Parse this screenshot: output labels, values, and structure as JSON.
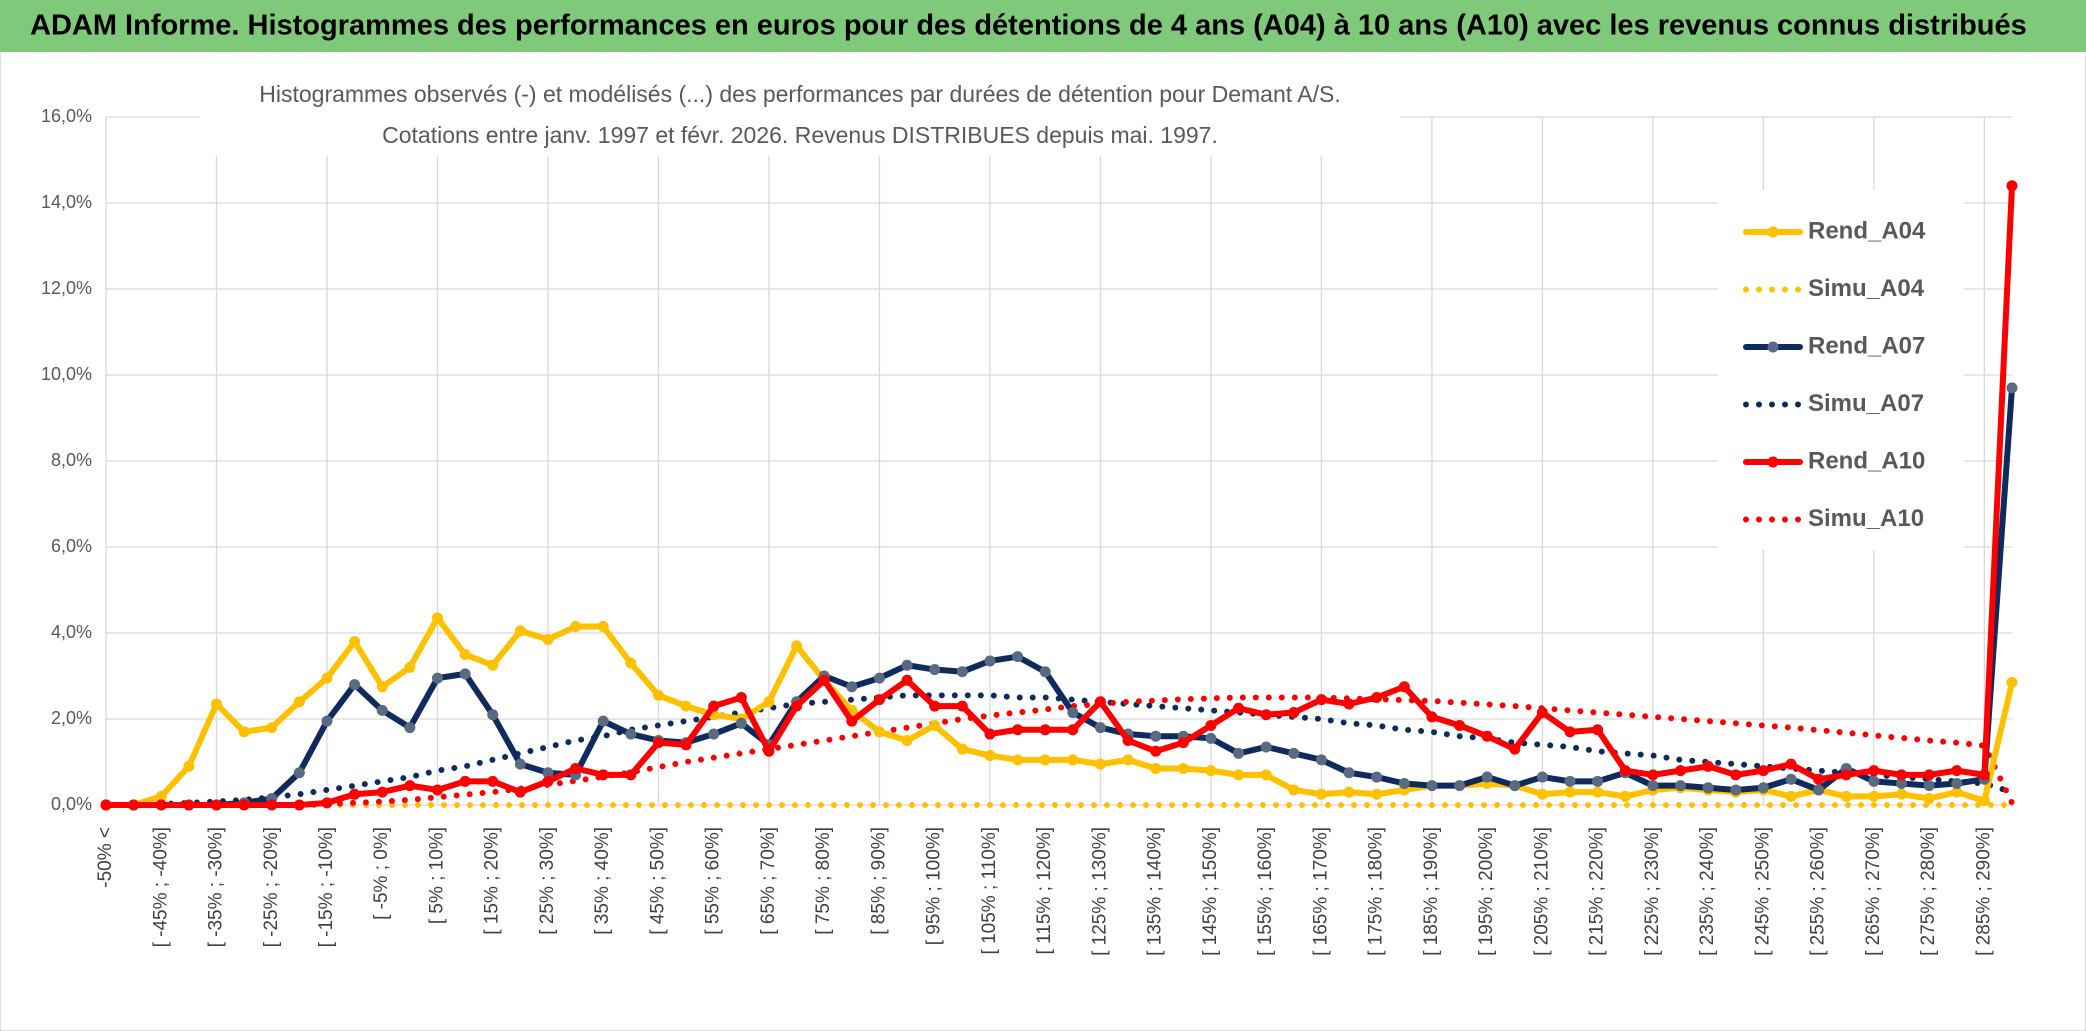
{
  "chart_data": {
    "type": "line",
    "title": "ADAM Informe. Histogrammes des performances en euros pour des détentions de 4 ans (A04) à 10 ans (A10) avec les revenus connus distribués",
    "subtitle": [
      "Histogrammes observés (-) et modélisés (...) des performances par durées de détention pour Demant A/S.",
      "Cotations entre janv. 1997 et févr. 2026. Revenus DISTRIBUES depuis mai. 1997."
    ],
    "categories": [
      "-50% <",
      null,
      "[ -45% ; -40%]",
      null,
      "[ -35% ; -30%]",
      null,
      "[ -25% ; -20%]",
      null,
      "[ -15% ; -10%]",
      null,
      "[ -5% ; 0%]",
      null,
      "[ 5% ; 10%]",
      null,
      "[ 15% ; 20%]",
      null,
      "[ 25% ; 30%]",
      null,
      "[ 35% ; 40%]",
      null,
      "[ 45% ; 50%]",
      null,
      "[ 55% ; 60%]",
      null,
      "[ 65% ; 70%]",
      null,
      "[ 75% ; 80%]",
      null,
      "[ 85% ; 90%]",
      null,
      "[ 95% ; 100%]",
      null,
      "[ 105% ; 110%]",
      null,
      "[ 115% ; 120%]",
      null,
      "[ 125% ; 130%]",
      null,
      "[ 135% ; 140%]",
      null,
      "[ 145% ; 150%]",
      null,
      "[ 155% ; 160%]",
      null,
      "[ 165% ; 170%]",
      null,
      "[ 175% ; 180%]",
      null,
      "[ 185% ; 190%]",
      null,
      "[ 195% ; 200%]",
      null,
      "[ 205% ; 210%]",
      null,
      "[ 215% ; 220%]",
      null,
      "[ 225% ; 230%]",
      null,
      "[ 235% ; 240%]",
      null,
      "[ 245% ; 250%]",
      null,
      "[ 255% ; 260%]",
      null,
      "[ 265% ; 270%]",
      null,
      "[ 275% ; 280%]",
      null,
      "[ 285% ; 290%]",
      null
    ],
    "series": [
      {
        "name": "Rend_A04",
        "color": "#ffc000",
        "style": "solid",
        "markers": true,
        "values": [
          0,
          0,
          0.2,
          0.9,
          2.35,
          1.7,
          1.8,
          2.4,
          2.95,
          3.8,
          2.75,
          3.2,
          4.35,
          3.5,
          3.25,
          4.05,
          3.85,
          4.15,
          4.15,
          3.3,
          2.55,
          2.3,
          2.1,
          2.0,
          2.4,
          3.7,
          2.9,
          2.2,
          1.7,
          1.5,
          1.85,
          1.3,
          1.15,
          1.05,
          1.05,
          1.05,
          0.95,
          1.05,
          0.85,
          0.85,
          0.8,
          0.7,
          0.7,
          0.35,
          0.25,
          0.3,
          0.25,
          0.35,
          0.45,
          0.45,
          0.5,
          0.45,
          0.25,
          0.3,
          0.3,
          0.2,
          0.35,
          0.4,
          0.35,
          0.3,
          0.35,
          0.2,
          0.35,
          0.2,
          0.2,
          0.25,
          0.15,
          0.3,
          0.1,
          2.85
        ]
      },
      {
        "name": "Simu_A04",
        "color": "#ffc000",
        "style": "dotted",
        "markers": false,
        "values": [
          0,
          0,
          0,
          0,
          0,
          0,
          0,
          0,
          0,
          0,
          0,
          0,
          0,
          0,
          0,
          0,
          0,
          0,
          0,
          0,
          0,
          0,
          0,
          0,
          0,
          0,
          0,
          0,
          0,
          0,
          0,
          0,
          0,
          0,
          0,
          0,
          0,
          0,
          0,
          0,
          0,
          0,
          0,
          0,
          0,
          0,
          0,
          0,
          0,
          0,
          0,
          0,
          0,
          0,
          0,
          0,
          0,
          0,
          0,
          0,
          0,
          0,
          0,
          0,
          0,
          0,
          0,
          0,
          0,
          0
        ]
      },
      {
        "name": "Rend_A07",
        "color": "#0f2a5c",
        "marker_color": "#5a6a82",
        "style": "solid",
        "markers": true,
        "values": [
          0,
          0,
          0,
          0,
          0,
          0.05,
          0.15,
          0.75,
          1.95,
          2.8,
          2.2,
          1.8,
          2.95,
          3.05,
          2.1,
          0.95,
          0.75,
          0.7,
          1.95,
          1.65,
          1.5,
          1.45,
          1.65,
          1.9,
          1.4,
          2.4,
          3.0,
          2.75,
          2.95,
          3.25,
          3.15,
          3.1,
          3.35,
          3.45,
          3.1,
          2.15,
          1.8,
          1.65,
          1.6,
          1.6,
          1.55,
          1.2,
          1.35,
          1.2,
          1.05,
          0.75,
          0.65,
          0.5,
          0.45,
          0.45,
          0.65,
          0.45,
          0.65,
          0.55,
          0.55,
          0.75,
          0.45,
          0.45,
          0.4,
          0.35,
          0.4,
          0.6,
          0.35,
          0.85,
          0.55,
          0.5,
          0.45,
          0.5,
          0.6,
          9.7
        ]
      },
      {
        "name": "Simu_A07",
        "color": "#0f2a5c",
        "style": "dotted",
        "markers": false,
        "values": [
          0,
          0,
          0.02,
          0.05,
          0.08,
          0.12,
          0.18,
          0.25,
          0.35,
          0.45,
          0.55,
          0.65,
          0.8,
          0.9,
          1.05,
          1.2,
          1.35,
          1.5,
          1.6,
          1.75,
          1.85,
          1.95,
          2.05,
          2.15,
          2.25,
          2.35,
          2.4,
          2.45,
          2.5,
          2.55,
          2.55,
          2.55,
          2.55,
          2.5,
          2.5,
          2.45,
          2.4,
          2.35,
          2.3,
          2.25,
          2.2,
          2.15,
          2.1,
          2.05,
          2.0,
          1.9,
          1.85,
          1.75,
          1.7,
          1.6,
          1.55,
          1.45,
          1.4,
          1.35,
          1.25,
          1.2,
          1.15,
          1.05,
          1.0,
          0.95,
          0.9,
          0.85,
          0.8,
          0.75,
          0.7,
          0.65,
          0.6,
          0.55,
          0.5,
          0.3
        ]
      },
      {
        "name": "Rend_A10",
        "color": "#ff0000",
        "style": "solid",
        "markers": true,
        "values": [
          0,
          0,
          0,
          0,
          0,
          0,
          0,
          0,
          0.05,
          0.25,
          0.3,
          0.45,
          0.35,
          0.55,
          0.55,
          0.3,
          0.55,
          0.85,
          0.7,
          0.7,
          1.45,
          1.4,
          2.3,
          2.5,
          1.25,
          2.3,
          2.9,
          1.95,
          2.45,
          2.9,
          2.3,
          2.3,
          1.65,
          1.75,
          1.75,
          1.75,
          2.4,
          1.5,
          1.25,
          1.45,
          1.85,
          2.25,
          2.1,
          2.15,
          2.45,
          2.35,
          2.5,
          2.75,
          2.05,
          1.85,
          1.6,
          1.3,
          2.15,
          1.7,
          1.75,
          0.8,
          0.7,
          0.8,
          0.9,
          0.7,
          0.8,
          0.95,
          0.6,
          0.7,
          0.8,
          0.7,
          0.7,
          0.8,
          0.7,
          14.4
        ]
      },
      {
        "name": "Simu_A10",
        "color": "#ff0000",
        "style": "dotted",
        "markers": false,
        "values": [
          0,
          0,
          0,
          0,
          0,
          0,
          0,
          0,
          0.02,
          0.05,
          0.08,
          0.12,
          0.18,
          0.24,
          0.3,
          0.38,
          0.47,
          0.56,
          0.66,
          0.76,
          0.88,
          1.0,
          1.1,
          1.2,
          1.3,
          1.4,
          1.5,
          1.6,
          1.7,
          1.8,
          1.9,
          2.0,
          2.08,
          2.15,
          2.22,
          2.3,
          2.35,
          2.4,
          2.43,
          2.46,
          2.48,
          2.5,
          2.5,
          2.5,
          2.5,
          2.48,
          2.46,
          2.44,
          2.42,
          2.38,
          2.34,
          2.3,
          2.25,
          2.2,
          2.15,
          2.1,
          2.05,
          2.0,
          1.95,
          1.9,
          1.85,
          1.8,
          1.74,
          1.68,
          1.62,
          1.56,
          1.5,
          1.45,
          1.38,
          0.05
        ]
      }
    ],
    "ylim": [
      0,
      16
    ],
    "yticks": [
      {
        "value": 0,
        "label": "0,0%"
      },
      {
        "value": 2,
        "label": "2,0%"
      },
      {
        "value": 4,
        "label": "4,0%"
      },
      {
        "value": 6,
        "label": "6,0%"
      },
      {
        "value": 8,
        "label": "8,0%"
      },
      {
        "value": 10,
        "label": "10,0%"
      },
      {
        "value": 12,
        "label": "12,0%"
      },
      {
        "value": 14,
        "label": "14,0%"
      },
      {
        "value": 16,
        "label": "16,0%"
      }
    ],
    "grid": true,
    "legend": "right"
  }
}
